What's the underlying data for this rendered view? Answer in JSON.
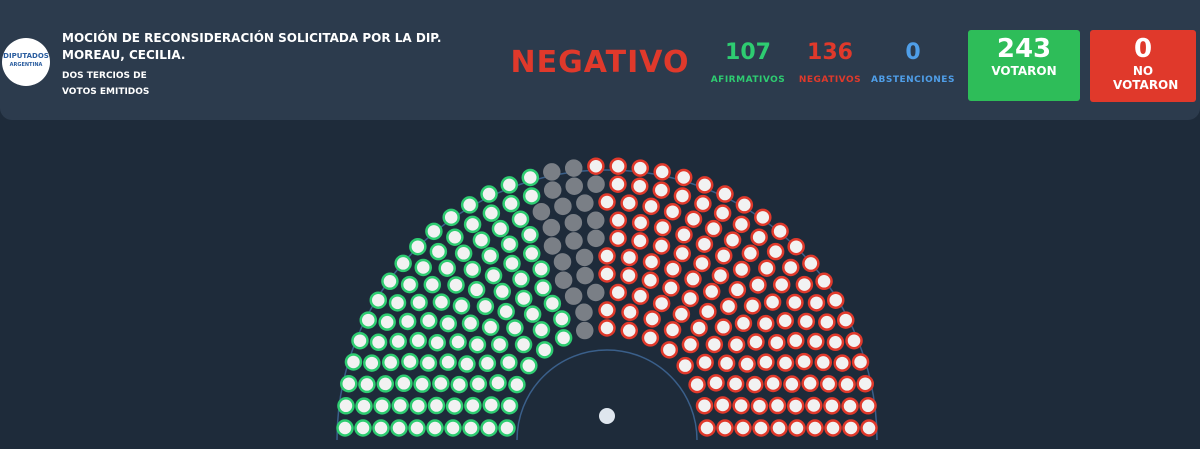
{
  "header": {
    "logo_top": "DIPUTADOS",
    "logo_bottom": "ARGENTINA",
    "title": "MOCIÓN DE RECONSIDERACIÓN SOLICITADA POR LA DIP. MOREAU, CECILIA.",
    "subtitle": "DOS TERCIOS DE VOTOS EMITIDOS"
  },
  "result": "NEGATIVO",
  "tally": [
    {
      "value": 107,
      "label": "AFIRMATIVOS"
    },
    {
      "value": 136,
      "label": "NEGATIVOS"
    },
    {
      "value": 0,
      "label": "ABSTENCIONES"
    }
  ],
  "voted": {
    "value": 243,
    "label": "VOTARON"
  },
  "not_voted": {
    "value": 0,
    "label": "NO VOTARON"
  }
}
